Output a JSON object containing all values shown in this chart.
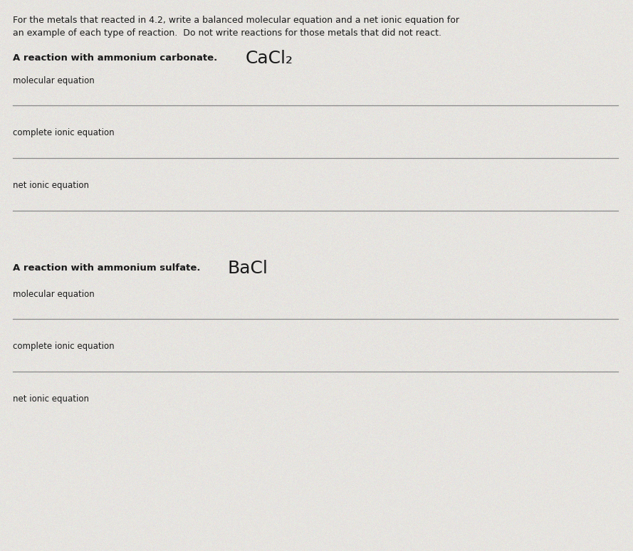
{
  "bg_color": "#c8c8c8",
  "paper_color": "#e6e4e0",
  "header_text_line1": "For the metals that reacted in 4.2, write a balanced molecular equation and a net ionic equation for",
  "header_text_line2": "an example of each type of reaction.  Do not write reactions for those metals that did not react.",
  "section1_header": "A reaction with ammonium carbonate.",
  "section1_handwritten": "CaCl₂",
  "section2_header": "A reaction with ammonium sulfate.",
  "section2_handwritten": "BaCl",
  "labels": [
    "molecular equation",
    "complete ionic equation",
    "net ionic equation"
  ],
  "header_fontsize": 9.0,
  "label_fontsize": 8.5,
  "section_header_fontsize": 9.5,
  "handwritten_fontsize": 18,
  "line_color": "#888888",
  "text_color": "#1a1a1a",
  "header_text_color": "#1a1a1a",
  "figwidth": 8.89,
  "figheight": 7.74,
  "dpi": 100
}
